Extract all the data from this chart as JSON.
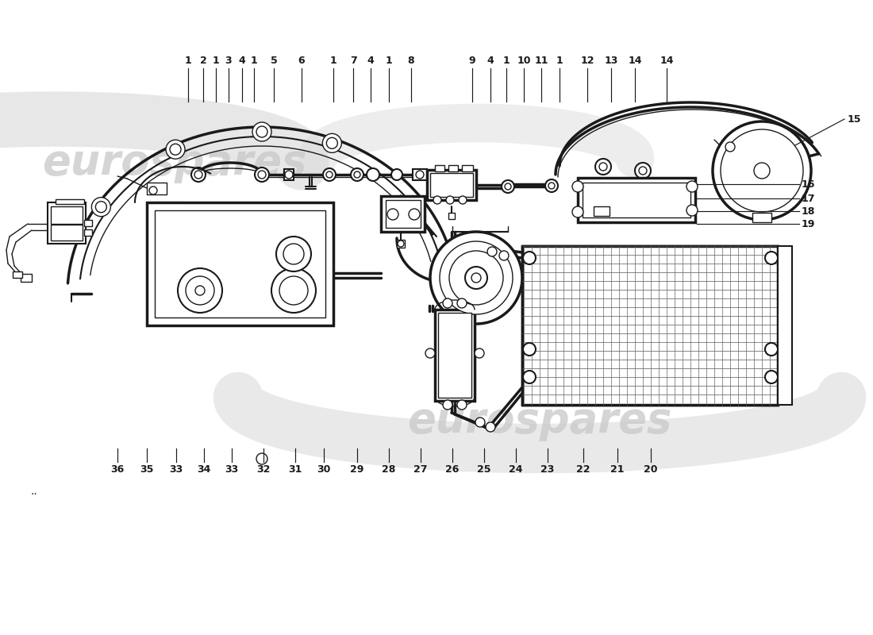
{
  "bg_color": "#ffffff",
  "line_color": "#1a1a1a",
  "watermark": "eurospares",
  "watermark_color": "#d8d8d8",
  "top_labels": [
    "1",
    "2",
    "1",
    "3",
    "4",
    "1",
    "5",
    "6",
    "1",
    "7",
    "4",
    "1",
    "8",
    "",
    "9",
    "4",
    "1",
    "10",
    "11",
    "1",
    "12",
    "13",
    "14"
  ],
  "bottom_labels": [
    "36",
    "35",
    "33",
    "34",
    "33",
    "32",
    "31",
    "30",
    "29",
    "28",
    "27",
    "26",
    "25",
    "24",
    "23",
    "22",
    "21",
    "20"
  ],
  "side_label_15": "15",
  "right_labels": [
    "16",
    "17",
    "18",
    "19"
  ],
  "dots": ".."
}
